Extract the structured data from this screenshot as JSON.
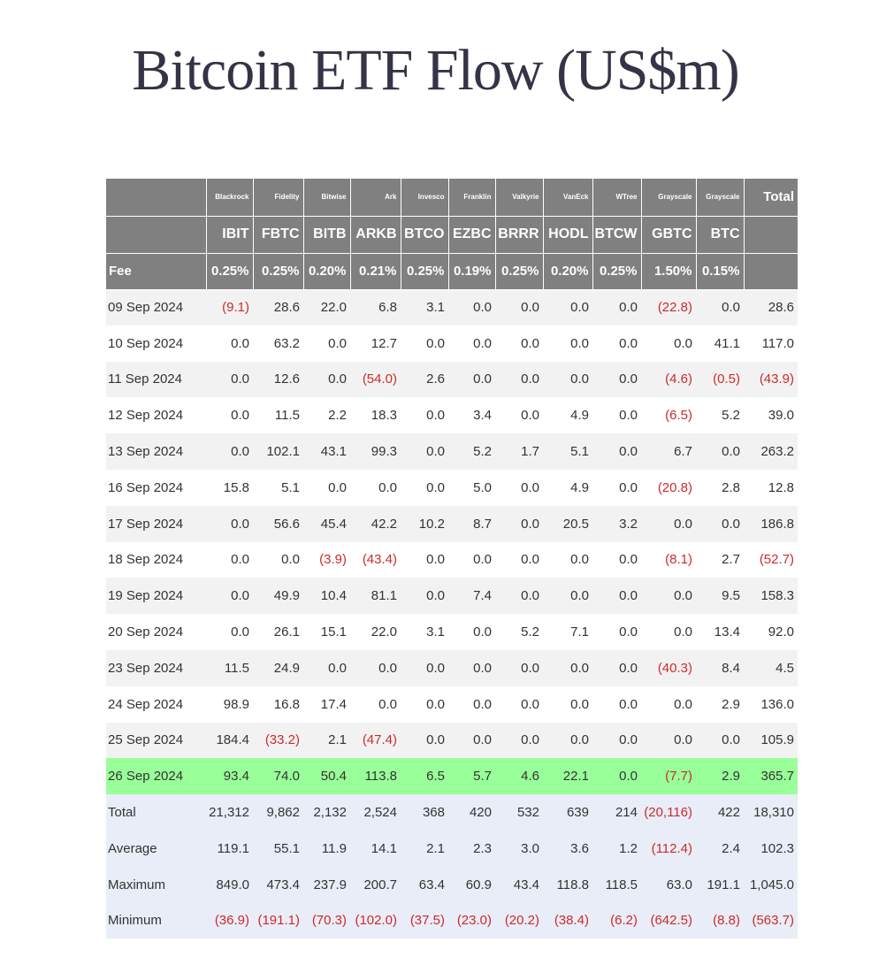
{
  "title": "Bitcoin ETF Flow (US$m)",
  "header": {
    "issuers": [
      "Blackrock",
      "Fidelity",
      "Bitwise",
      "Ark",
      "Invesco",
      "Franklin",
      "Valkyrie",
      "VanEck",
      "WTree",
      "Grayscale",
      "Grayscale"
    ],
    "total_label": "Total",
    "tickers": [
      "IBIT",
      "FBTC",
      "BITB",
      "ARKB",
      "BTCO",
      "EZBC",
      "BRRR",
      "HODL",
      "BTCW",
      "GBTC",
      "BTC"
    ],
    "fee_label": "Fee",
    "fees": [
      "0.25%",
      "0.25%",
      "0.20%",
      "0.21%",
      "0.25%",
      "0.19%",
      "0.25%",
      "0.20%",
      "0.25%",
      "1.50%",
      "0.15%"
    ]
  },
  "rows": [
    {
      "date": "09 Sep 2024",
      "values": [
        "(9.1)",
        "28.6",
        "22.0",
        "6.8",
        "3.1",
        "0.0",
        "0.0",
        "0.0",
        "0.0",
        "(22.8)",
        "0.0",
        "28.6"
      ]
    },
    {
      "date": "10 Sep 2024",
      "values": [
        "0.0",
        "63.2",
        "0.0",
        "12.7",
        "0.0",
        "0.0",
        "0.0",
        "0.0",
        "0.0",
        "0.0",
        "41.1",
        "117.0"
      ]
    },
    {
      "date": "11 Sep 2024",
      "values": [
        "0.0",
        "12.6",
        "0.0",
        "(54.0)",
        "2.6",
        "0.0",
        "0.0",
        "0.0",
        "0.0",
        "(4.6)",
        "(0.5)",
        "(43.9)"
      ]
    },
    {
      "date": "12 Sep 2024",
      "values": [
        "0.0",
        "11.5",
        "2.2",
        "18.3",
        "0.0",
        "3.4",
        "0.0",
        "4.9",
        "0.0",
        "(6.5)",
        "5.2",
        "39.0"
      ]
    },
    {
      "date": "13 Sep 2024",
      "values": [
        "0.0",
        "102.1",
        "43.1",
        "99.3",
        "0.0",
        "5.2",
        "1.7",
        "5.1",
        "0.0",
        "6.7",
        "0.0",
        "263.2"
      ]
    },
    {
      "date": "16 Sep 2024",
      "values": [
        "15.8",
        "5.1",
        "0.0",
        "0.0",
        "0.0",
        "5.0",
        "0.0",
        "4.9",
        "0.0",
        "(20.8)",
        "2.8",
        "12.8"
      ]
    },
    {
      "date": "17 Sep 2024",
      "values": [
        "0.0",
        "56.6",
        "45.4",
        "42.2",
        "10.2",
        "8.7",
        "0.0",
        "20.5",
        "3.2",
        "0.0",
        "0.0",
        "186.8"
      ]
    },
    {
      "date": "18 Sep 2024",
      "values": [
        "0.0",
        "0.0",
        "(3.9)",
        "(43.4)",
        "0.0",
        "0.0",
        "0.0",
        "0.0",
        "0.0",
        "(8.1)",
        "2.7",
        "(52.7)"
      ]
    },
    {
      "date": "19 Sep 2024",
      "values": [
        "0.0",
        "49.9",
        "10.4",
        "81.1",
        "0.0",
        "7.4",
        "0.0",
        "0.0",
        "0.0",
        "0.0",
        "9.5",
        "158.3"
      ]
    },
    {
      "date": "20 Sep 2024",
      "values": [
        "0.0",
        "26.1",
        "15.1",
        "22.0",
        "3.1",
        "0.0",
        "5.2",
        "7.1",
        "0.0",
        "0.0",
        "13.4",
        "92.0"
      ]
    },
    {
      "date": "23 Sep 2024",
      "values": [
        "11.5",
        "24.9",
        "0.0",
        "0.0",
        "0.0",
        "0.0",
        "0.0",
        "0.0",
        "0.0",
        "(40.3)",
        "8.4",
        "4.5"
      ]
    },
    {
      "date": "24 Sep 2024",
      "values": [
        "98.9",
        "16.8",
        "17.4",
        "0.0",
        "0.0",
        "0.0",
        "0.0",
        "0.0",
        "0.0",
        "0.0",
        "2.9",
        "136.0"
      ]
    },
    {
      "date": "25 Sep 2024",
      "values": [
        "184.4",
        "(33.2)",
        "2.1",
        "(47.4)",
        "0.0",
        "0.0",
        "0.0",
        "0.0",
        "0.0",
        "0.0",
        "0.0",
        "105.9"
      ]
    },
    {
      "date": "26 Sep 2024",
      "values": [
        "93.4",
        "74.0",
        "50.4",
        "113.8",
        "6.5",
        "5.7",
        "4.6",
        "22.1",
        "0.0",
        "(7.7)",
        "2.9",
        "365.7"
      ],
      "highlight": true
    }
  ],
  "summary": [
    {
      "label": "Total",
      "values": [
        "21,312",
        "9,862",
        "2,132",
        "2,524",
        "368",
        "420",
        "532",
        "639",
        "214",
        "(20,116)",
        "422",
        "18,310"
      ]
    },
    {
      "label": "Average",
      "values": [
        "119.1",
        "55.1",
        "11.9",
        "14.1",
        "2.1",
        "2.3",
        "3.0",
        "3.6",
        "1.2",
        "(112.4)",
        "2.4",
        "102.3"
      ]
    },
    {
      "label": "Maximum",
      "values": [
        "849.0",
        "473.4",
        "237.9",
        "200.7",
        "63.4",
        "60.9",
        "43.4",
        "118.8",
        "118.5",
        "63.0",
        "191.1",
        "1,045.0"
      ]
    },
    {
      "label": "Minimum",
      "values": [
        "(36.9)",
        "(191.1)",
        "(70.3)",
        "(102.0)",
        "(37.5)",
        "(23.0)",
        "(20.2)",
        "(38.4)",
        "(6.2)",
        "(642.5)",
        "(8.8)",
        "(563.7)"
      ]
    }
  ],
  "colors": {
    "header_bg": "#808080",
    "row_alt_bg": "#f2f2f2",
    "highlight_bg": "#99ff99",
    "summary_bg": "#e8edf7",
    "negative_text": "#cc2b2b",
    "title_text": "#343447"
  }
}
